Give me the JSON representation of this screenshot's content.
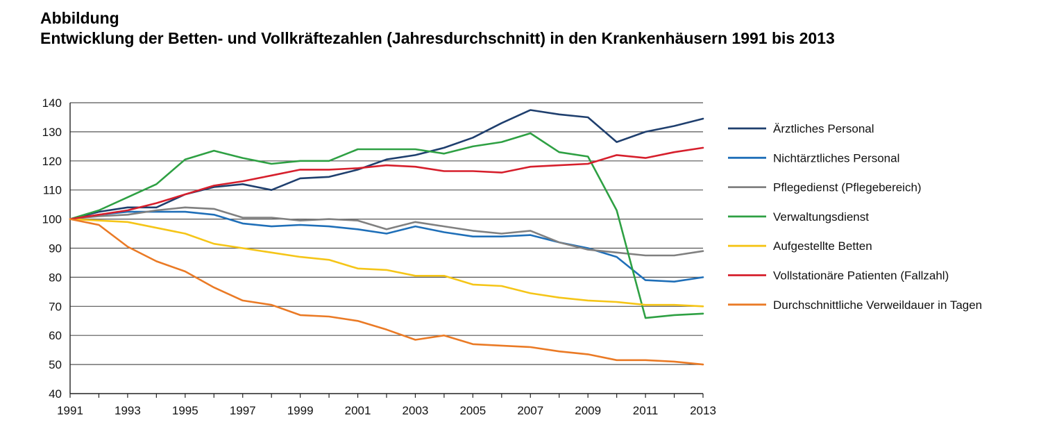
{
  "heading": {
    "label": "Abbildung",
    "title": "Entwicklung der Betten- und Vollkräftezahlen (Jahresdurchschnitt) in den Krankenhäusern 1991 bis 2013"
  },
  "chart_data": {
    "type": "line",
    "title": "Entwicklung der Betten- und Vollkräftezahlen (Jahresdurchschnitt) in den Krankenhäusern 1991 bis 2013",
    "xlabel": "",
    "ylabel": "",
    "grid": true,
    "legend": "right",
    "x": [
      1991,
      1992,
      1993,
      1994,
      1995,
      1996,
      1997,
      1998,
      1999,
      2000,
      2001,
      2002,
      2003,
      2004,
      2005,
      2006,
      2007,
      2008,
      2009,
      2010,
      2011,
      2012,
      2013
    ],
    "xticks": [
      1991,
      1993,
      1995,
      1997,
      1999,
      2001,
      2003,
      2005,
      2007,
      2009,
      2011,
      2013
    ],
    "xtick_labels": [
      "1991",
      "1993",
      "1995",
      "1997",
      "1999",
      "2001",
      "2003",
      "2005",
      "2007",
      "2009",
      "2011",
      "2013"
    ],
    "xlim": [
      1991,
      2013
    ],
    "ylim": [
      40,
      140
    ],
    "yticks": [
      40,
      50,
      60,
      70,
      80,
      90,
      100,
      110,
      120,
      130,
      140
    ],
    "ytick_labels": [
      "40",
      "50",
      "60",
      "70",
      "80",
      "90",
      "100",
      "110",
      "120",
      "130",
      "140"
    ],
    "series": [
      {
        "name": "Ärztliches Personal",
        "color": "#1f3f6e",
        "values": [
          100,
          102.5,
          104,
          104,
          108.5,
          111,
          112,
          110,
          114,
          114.5,
          117,
          120.5,
          122,
          124.5,
          128,
          133,
          137.5,
          136,
          135,
          126.5,
          130,
          132,
          134.5
        ]
      },
      {
        "name": "Nichtärztliches Personal",
        "color": "#1f6fb8",
        "values": [
          100,
          101.5,
          102.5,
          102.5,
          102.5,
          101.5,
          98.5,
          97.5,
          98,
          97.5,
          96.5,
          95,
          97.5,
          95.5,
          94,
          94,
          94.5,
          92,
          90,
          87,
          79,
          78.5,
          80
        ]
      },
      {
        "name": "Pflegedienst (Pflegebereich)",
        "color": "#808080",
        "values": [
          100,
          101,
          101.5,
          103,
          104,
          103.5,
          100.5,
          100.5,
          99.5,
          100,
          99.5,
          96.5,
          99,
          97.5,
          96,
          95,
          96,
          92,
          89.5,
          88.5,
          87.5,
          87.5,
          89
        ]
      },
      {
        "name": "Verwaltungsdienst",
        "color": "#2ea043",
        "values": [
          100,
          103,
          107.5,
          112,
          120.5,
          123.5,
          121,
          119,
          120,
          120,
          124,
          124,
          124,
          122.5,
          125,
          126.5,
          129.5,
          123,
          121.5,
          103,
          66,
          67,
          67.5
        ]
      },
      {
        "name": "Aufgestellte Betten",
        "color": "#f5c518",
        "values": [
          100,
          99.5,
          99,
          97,
          95,
          91.5,
          90,
          88.5,
          87,
          86,
          83,
          82.5,
          80.5,
          80.5,
          77.5,
          77,
          74.5,
          73,
          72,
          71.5,
          70.5,
          70.5,
          70
        ]
      },
      {
        "name": "Vollstationäre Patienten (Fallzahl)",
        "color": "#d61f2c",
        "values": [
          100,
          101.5,
          103,
          105.5,
          108.5,
          111.5,
          113,
          115,
          117,
          117,
          117.5,
          118.5,
          118,
          116.5,
          116.5,
          116,
          118,
          118.5,
          119,
          122,
          121,
          123,
          124.5
        ]
      },
      {
        "name": "Durchschnittliche Verweildauer in Tagen",
        "color": "#ea7a25",
        "values": [
          100,
          98,
          90.5,
          85.5,
          82,
          76.5,
          72,
          70.5,
          67,
          66.5,
          65,
          62,
          58.5,
          60,
          57,
          56.5,
          56,
          54.5,
          53.5,
          51.5,
          51.5,
          51,
          50
        ]
      }
    ]
  }
}
